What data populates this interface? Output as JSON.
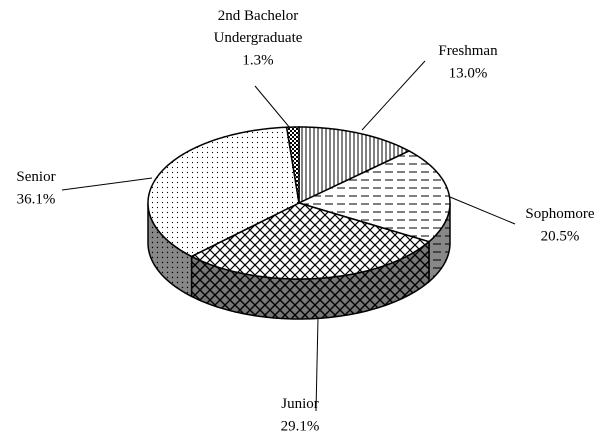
{
  "chart_data": {
    "type": "pie",
    "categories": [
      "Freshman",
      "Sophomore",
      "Junior",
      "Senior",
      "2nd Bachelor Undergraduate"
    ],
    "values": [
      13.0,
      20.5,
      29.1,
      36.1,
      1.3
    ],
    "value_labels": [
      "13.0%",
      "20.5%",
      "29.1%",
      "36.1%",
      "1.3%"
    ]
  }
}
